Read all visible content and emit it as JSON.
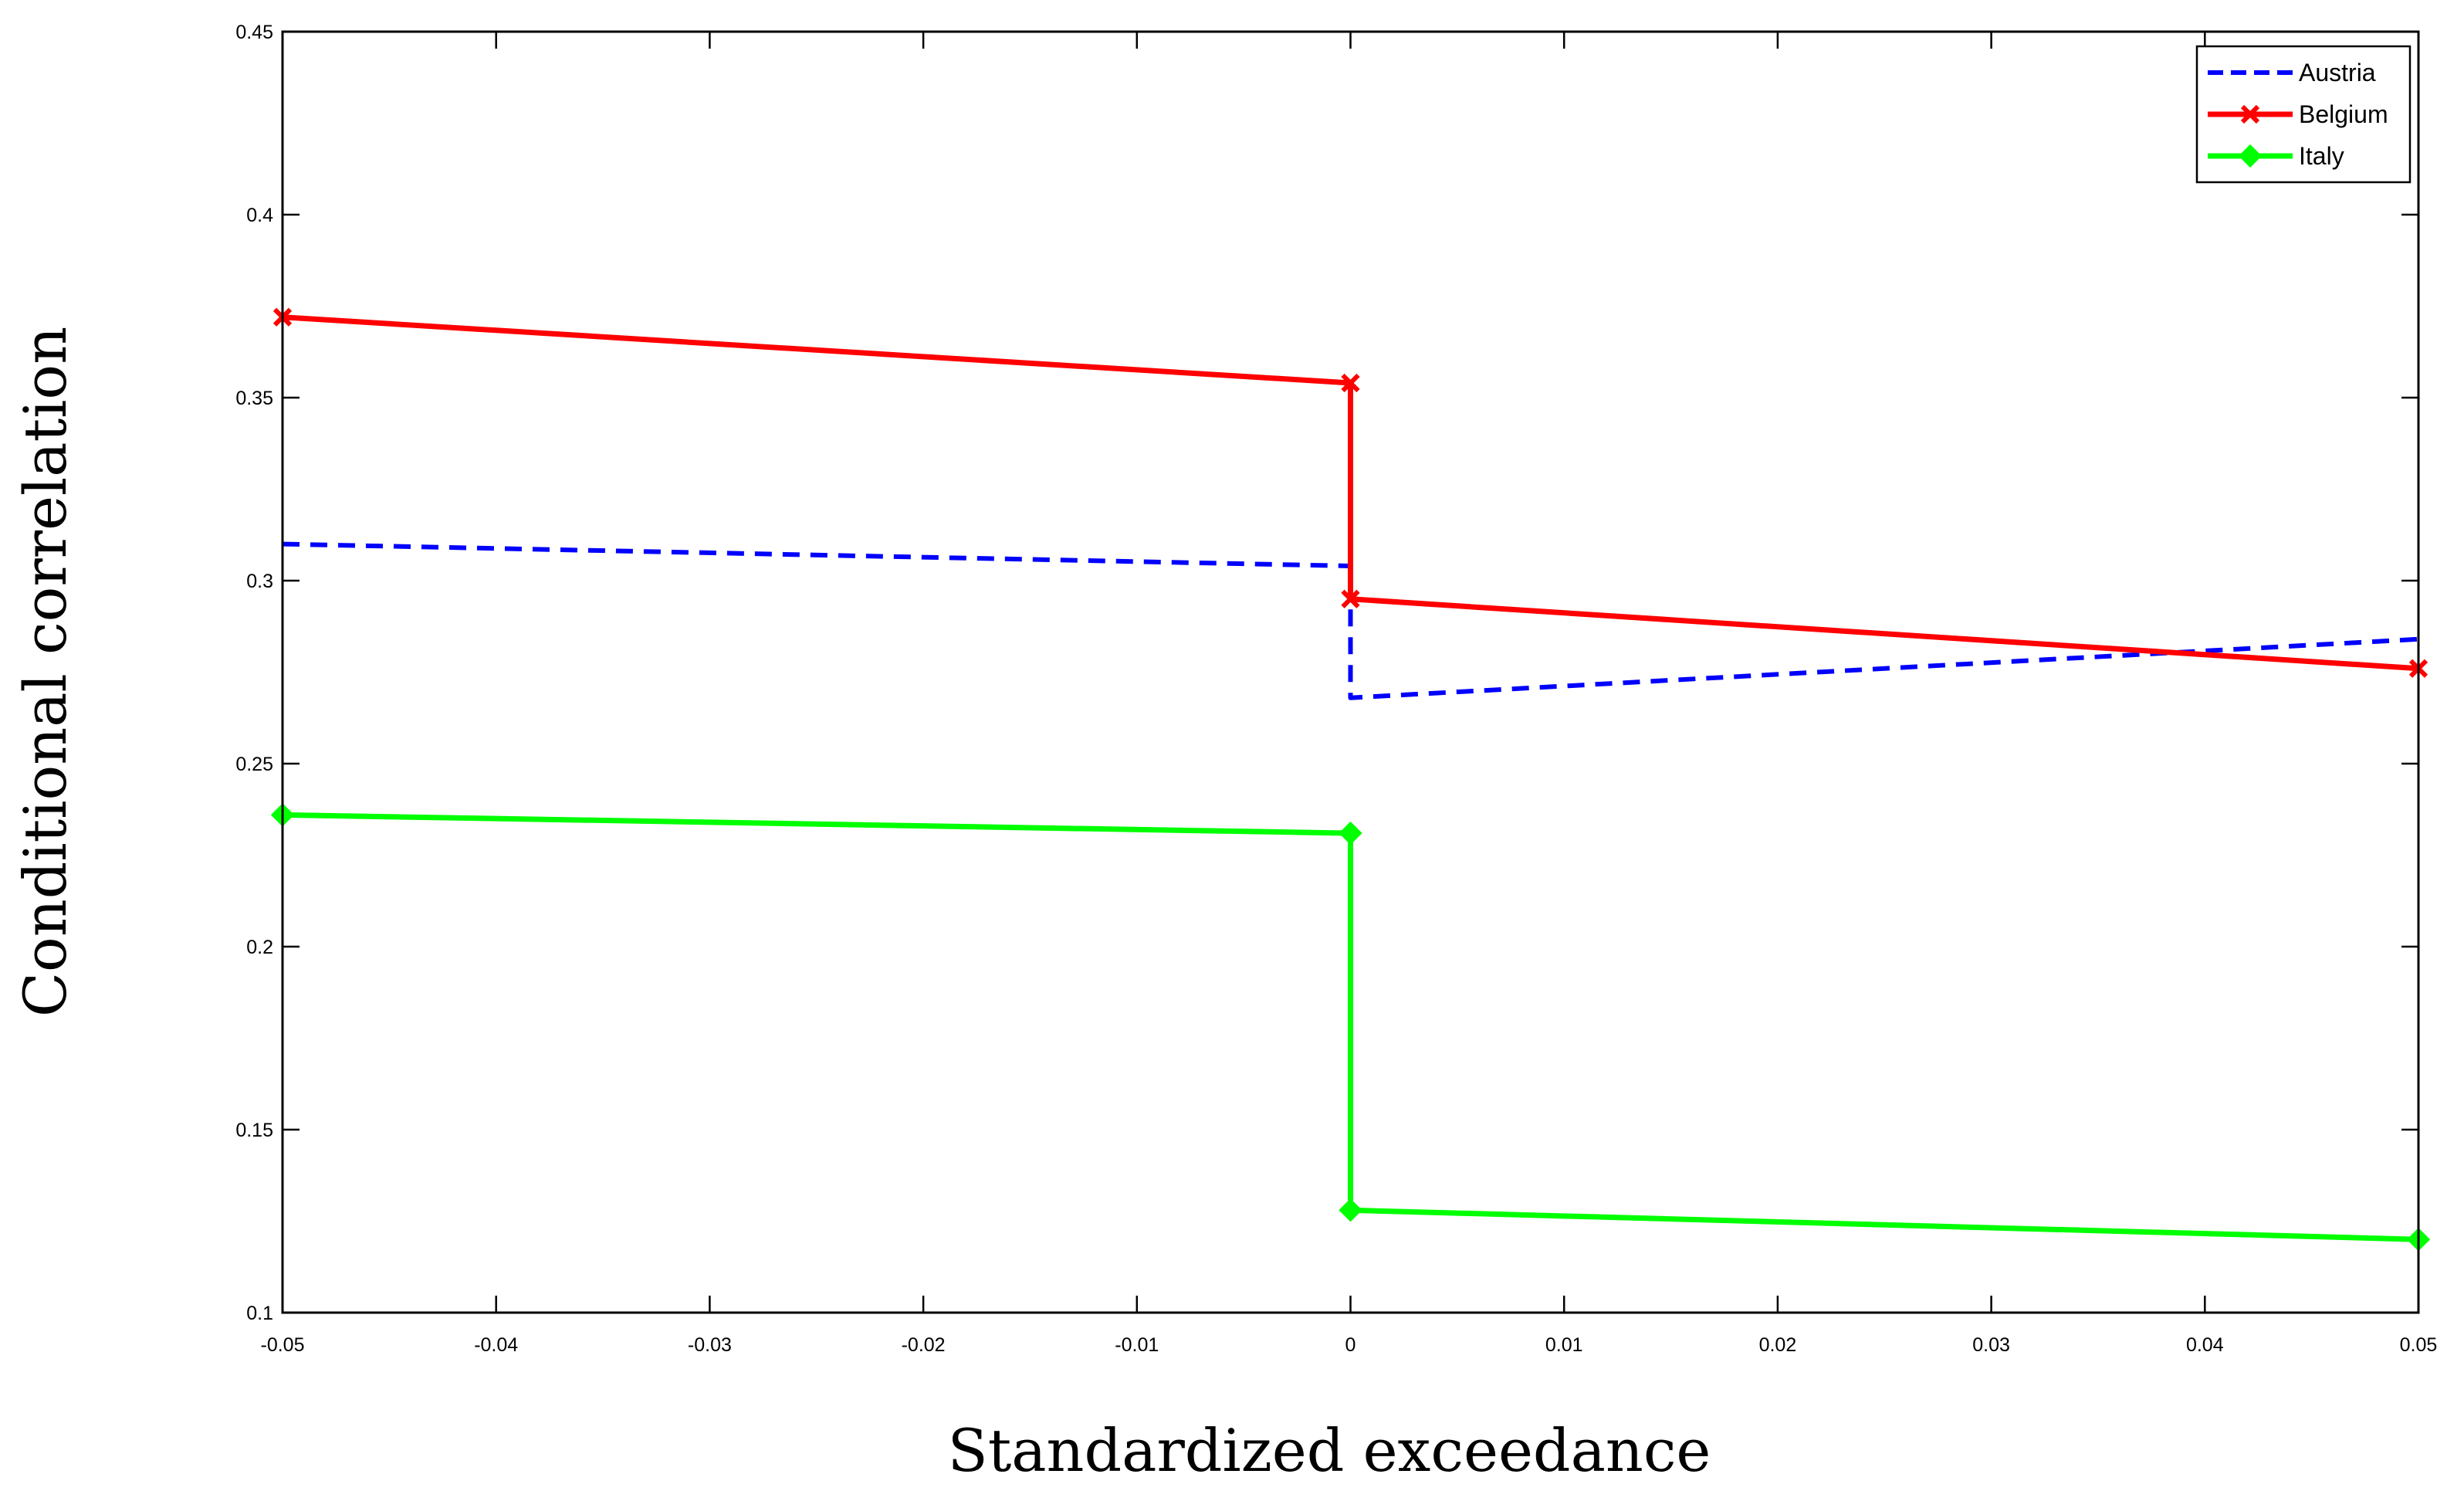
{
  "chart_data": {
    "type": "line",
    "title": "",
    "xlabel": "Standardized exceedance",
    "ylabel": "Conditional correlation",
    "xlim": [
      -0.05,
      0.05
    ],
    "ylim": [
      0.1,
      0.45
    ],
    "xticks": [
      -0.05,
      -0.04,
      -0.03,
      -0.02,
      -0.01,
      0,
      0.01,
      0.02,
      0.03,
      0.04,
      0.05
    ],
    "xtick_labels": [
      "-0.05",
      "-0.04",
      "-0.03",
      "-0.02",
      "-0.01",
      "0",
      "0.01",
      "0.02",
      "0.03",
      "0.04",
      "0.05"
    ],
    "yticks": [
      0.1,
      0.15,
      0.2,
      0.25,
      0.3,
      0.35,
      0.4,
      0.45
    ],
    "ytick_labels": [
      "0.1",
      "0.15",
      "0.2",
      "0.25",
      "0.3",
      "0.35",
      "0.4",
      "0.45"
    ],
    "grid": false,
    "legend_position": "top-right",
    "series": [
      {
        "name": "Austria",
        "color": "#0000ff",
        "line_style": "dashed",
        "marker": "none",
        "x": [
          -0.05,
          0,
          0,
          0.05
        ],
        "y": [
          0.31,
          0.304,
          0.268,
          0.284
        ]
      },
      {
        "name": "Belgium",
        "color": "#ff0000",
        "line_style": "solid",
        "marker": "x",
        "x": [
          -0.05,
          0,
          0,
          0.05
        ],
        "y": [
          0.372,
          0.354,
          0.295,
          0.276
        ]
      },
      {
        "name": "Italy",
        "color": "#00ff00",
        "line_style": "solid",
        "marker": "diamond",
        "x": [
          -0.05,
          0,
          0,
          0.05
        ],
        "y": [
          0.236,
          0.231,
          0.128,
          0.12
        ]
      }
    ]
  }
}
